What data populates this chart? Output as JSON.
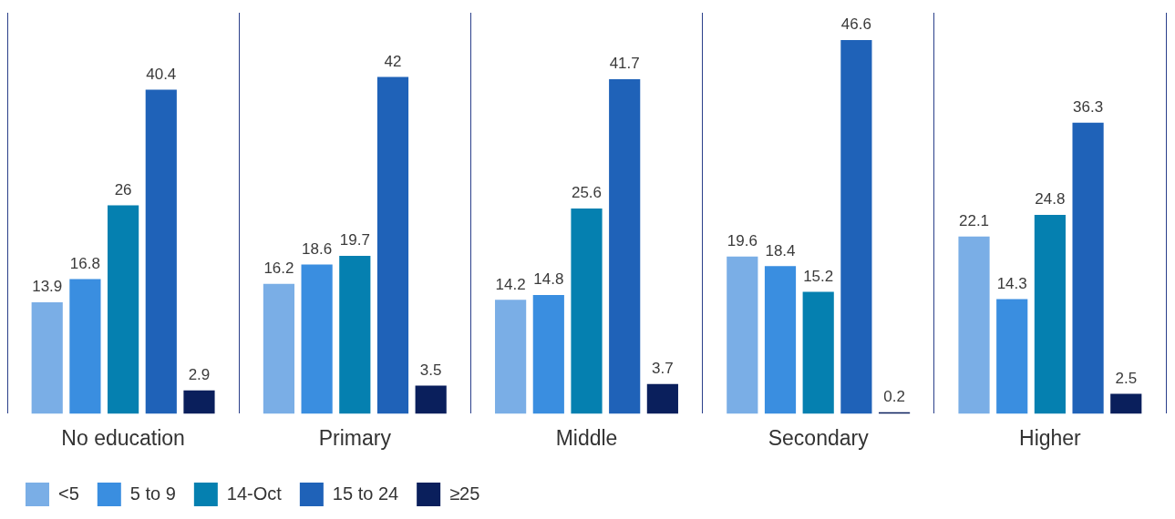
{
  "chart_data": {
    "type": "bar",
    "categories": [
      "No education",
      "Primary",
      "Middle",
      "Secondary",
      "Higher"
    ],
    "series": [
      {
        "name": "<5",
        "color": "#7aaee6",
        "values": [
          13.9,
          16.2,
          14.2,
          19.6,
          22.1
        ]
      },
      {
        "name": "5 to 9",
        "color": "#3a8ee0",
        "values": [
          16.8,
          18.6,
          14.8,
          18.4,
          14.3
        ]
      },
      {
        "name": "14-Oct",
        "color": "#0580b0",
        "values": [
          26,
          19.7,
          25.6,
          15.2,
          24.8
        ]
      },
      {
        "name": "15 to 24",
        "color": "#1f62b8",
        "values": [
          40.4,
          42,
          41.7,
          46.6,
          36.3
        ]
      },
      {
        "name": "≥25",
        "color": "#0a1f5c",
        "values": [
          2.9,
          3.5,
          3.7,
          0.2,
          2.5
        ]
      }
    ],
    "data_labels": true,
    "grid": "x",
    "legend": "bottom left",
    "tick_labels": "x"
  }
}
